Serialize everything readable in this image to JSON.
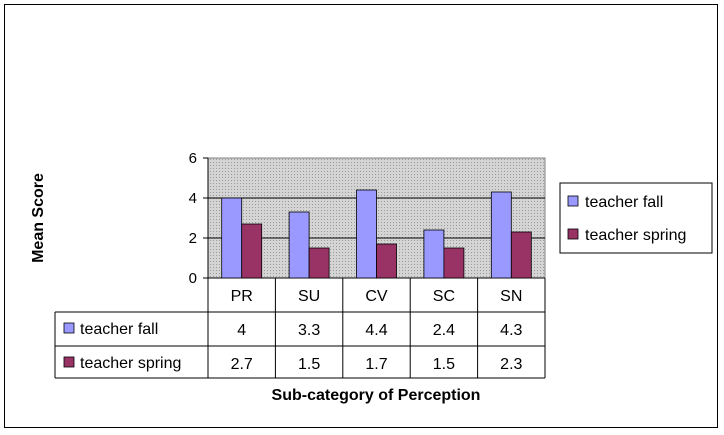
{
  "chart_data": {
    "type": "bar",
    "categories": [
      "PR",
      "SU",
      "CV",
      "SC",
      "SN"
    ],
    "series": [
      {
        "name": "teacher fall",
        "values": [
          4,
          3.3,
          4.4,
          2.4,
          4.3
        ],
        "table_values": [
          "4",
          "3.3",
          "4.4",
          "2.4",
          "4.3"
        ],
        "color": "#9999ff"
      },
      {
        "name": "teacher spring",
        "values": [
          2.7,
          1.5,
          1.7,
          1.5,
          2.3
        ],
        "table_values": [
          "2.7",
          "1.5",
          "1.7",
          "1.5",
          "2.3"
        ],
        "color": "#993366"
      }
    ],
    "title": "",
    "xlabel": "Sub-category of Perception",
    "ylabel": "Mean Score",
    "ylim": [
      0,
      6
    ],
    "yticks": [
      "0",
      "2",
      "4",
      "6"
    ],
    "grid": true,
    "legend_position": "right",
    "data_table": true,
    "plot_background": "#c0c0c0"
  }
}
